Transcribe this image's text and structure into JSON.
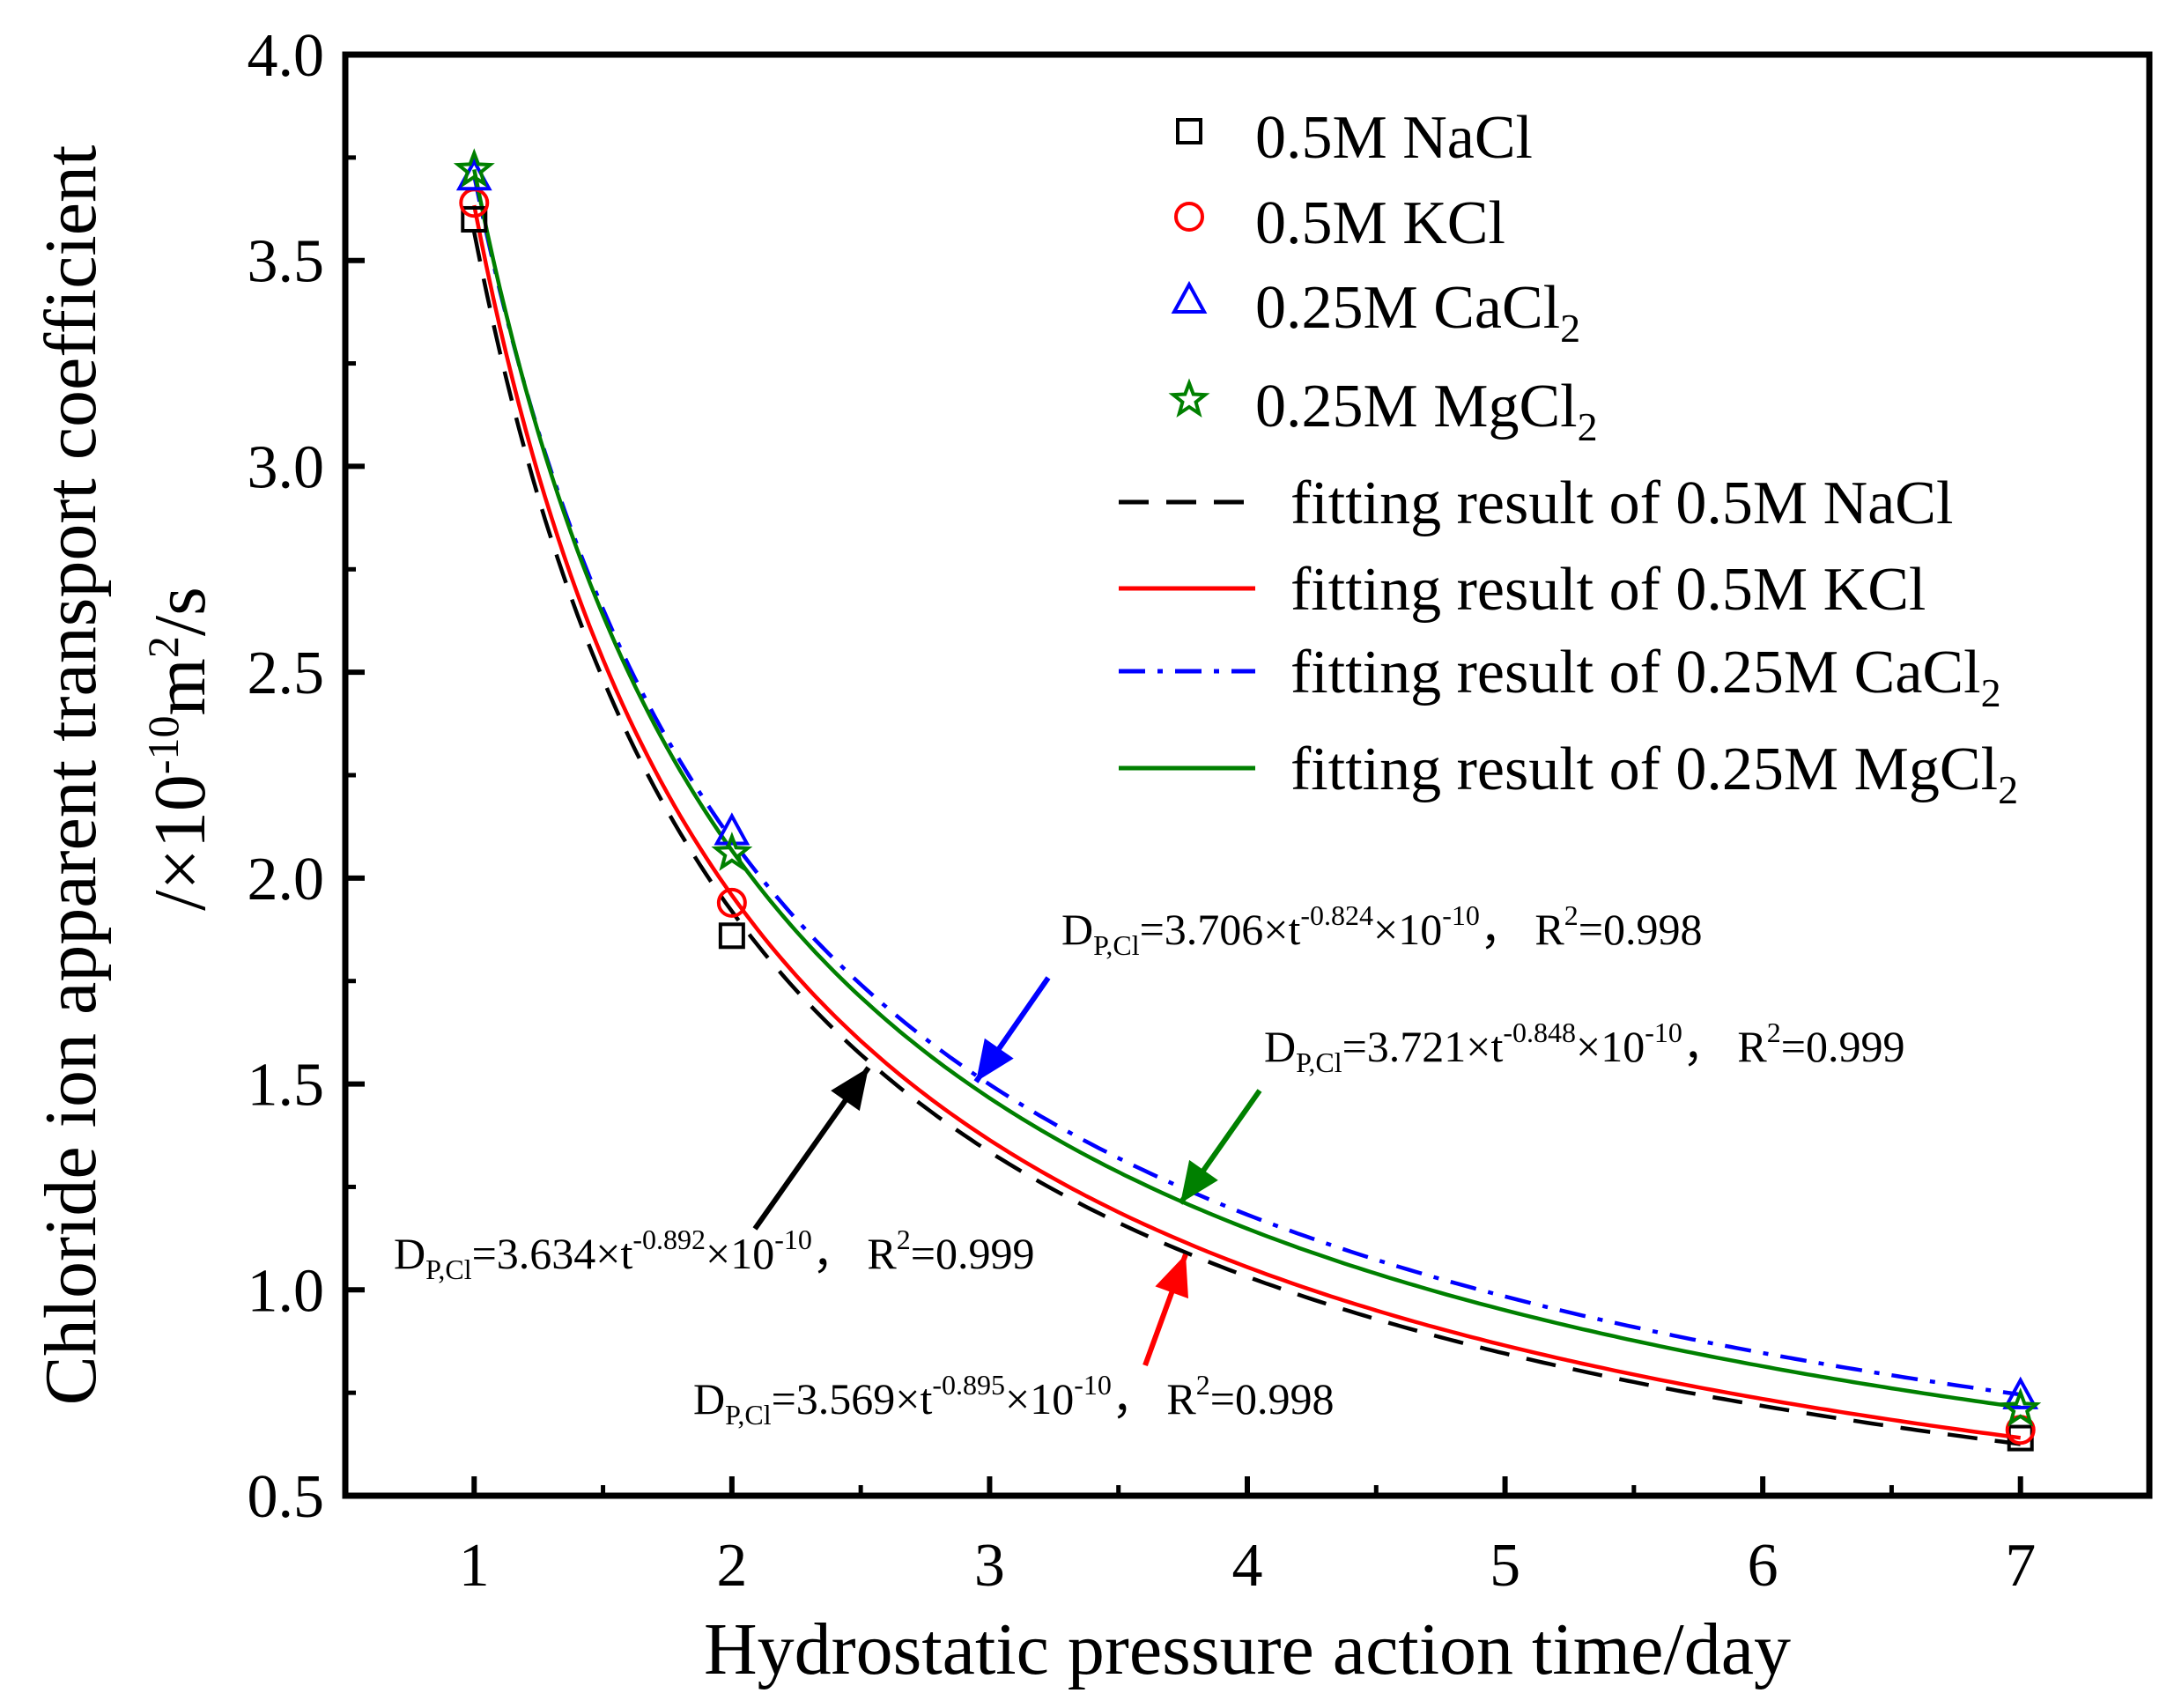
{
  "chart_data": {
    "type": "scatter",
    "xlabel": "Hydrostatic pressure action time/day",
    "ylabel_line1": "Chloride ion apparent  transport coefficient",
    "ylabel_line2_prefix": "/×10",
    "ylabel_line2_exp": "-10",
    "ylabel_line2_unit": "m",
    "ylabel_line2_unit_exp": "2",
    "ylabel_line2_suffix": "/s",
    "xlim": [
      0.5,
      7.5
    ],
    "ylim": [
      0.5,
      4.0
    ],
    "xticks": [
      1,
      2,
      3,
      4,
      5,
      6,
      7
    ],
    "xtick_labels": [
      "1",
      "2",
      "3",
      "4",
      "5",
      "6",
      "7"
    ],
    "yticks": [
      0.5,
      1.0,
      1.5,
      2.0,
      2.5,
      3.0,
      3.5,
      4.0
    ],
    "ytick_labels": [
      "0.5",
      "1.0",
      "1.5",
      "2.0",
      "2.5",
      "3.0",
      "3.5",
      "4.0"
    ],
    "legend_position": "top-right",
    "series": [
      {
        "name": "0.5M NaCl",
        "marker": "square",
        "color": "#000000",
        "x": [
          1,
          2,
          7
        ],
        "y": [
          3.6,
          1.86,
          0.64
        ]
      },
      {
        "name": "0.5M KCl",
        "marker": "circle",
        "color": "#ff0000",
        "x": [
          1,
          2,
          7
        ],
        "y": [
          3.64,
          1.94,
          0.66
        ]
      },
      {
        "name": "0.25M CaCl₂",
        "marker": "triangle",
        "color": "#0000ff",
        "x": [
          1,
          2,
          7
        ],
        "y": [
          3.7,
          2.11,
          0.74
        ]
      },
      {
        "name": "0.25M MgCl₂",
        "marker": "star",
        "color": "#008000",
        "x": [
          1,
          2,
          7
        ],
        "y": [
          3.72,
          2.06,
          0.71
        ]
      }
    ],
    "fits": [
      {
        "name": "fitting result of 0.5M NaCl",
        "a": 3.569,
        "b": -0.895,
        "color": "#000000",
        "dash": "dashed",
        "label_coef": "3.569",
        "label_exp": "-0.895",
        "r2": "0.998"
      },
      {
        "name": "fitting result of 0.5M KCl",
        "a": 3.634,
        "b": -0.892,
        "color": "#ff0000",
        "dash": "solid",
        "label_coef": "3.634",
        "label_exp": "-0.892",
        "r2": "0.999"
      },
      {
        "name": "fitting result of 0.25M CaCl₂",
        "a": 3.706,
        "b": -0.824,
        "color": "#0000ff",
        "dash": "dashdot",
        "label_coef": "3.706",
        "label_exp": "-0.824",
        "r2": "0.998"
      },
      {
        "name": "fitting result of 0.25M MgCl₂",
        "a": 3.721,
        "b": -0.848,
        "color": "#008000",
        "dash": "solid",
        "label_coef": "3.721",
        "label_exp": "-0.848",
        "r2": "0.999"
      }
    ],
    "annotation_text": {
      "D": "D",
      "sub": "P,Cl",
      "eq": "=",
      "times_t": "×t",
      "times_ten": "×10",
      "ten_exp": "-10",
      "sep": "，",
      "R": "R",
      "R_exp": "2",
      "R_eq": "="
    }
  }
}
